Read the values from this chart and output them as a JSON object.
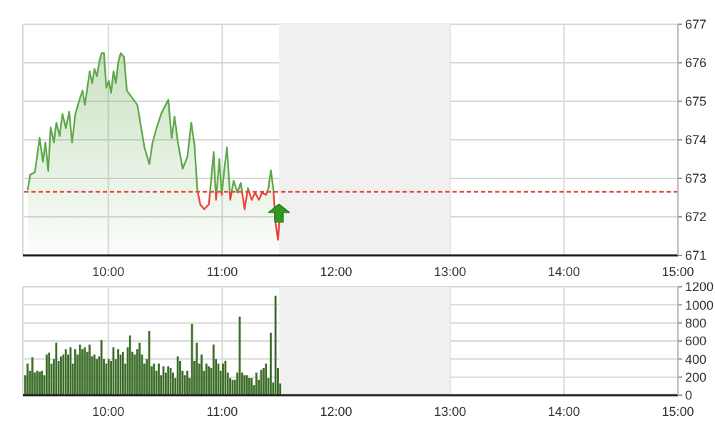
{
  "chart_data": [
    {
      "type": "area",
      "x": [
        9.293,
        9.314,
        9.356,
        9.397,
        9.427,
        9.448,
        9.473,
        9.494,
        9.523,
        9.544,
        9.573,
        9.598,
        9.628,
        9.657,
        9.682,
        9.711,
        9.741,
        9.774,
        9.795,
        9.816,
        9.837,
        9.858,
        9.879,
        9.9,
        9.921,
        9.941,
        9.962,
        9.983,
        10.004,
        10.025,
        10.046,
        10.067,
        10.088,
        10.109,
        10.138,
        10.163,
        10.192,
        10.222,
        10.255,
        10.289,
        10.318,
        10.36,
        10.389,
        10.423,
        10.464,
        10.494,
        10.527,
        10.556,
        10.582,
        10.611,
        10.653,
        10.695,
        10.728,
        10.757,
        10.782,
        10.808,
        10.841,
        10.883,
        10.925,
        10.946,
        10.975,
        10.996,
        11.017,
        11.042,
        11.071,
        11.1,
        11.134,
        11.163,
        11.197,
        11.226,
        11.259,
        11.289,
        11.322,
        11.351,
        11.385,
        11.406,
        11.427,
        11.448,
        11.469,
        11.49,
        11.502
      ],
      "series": [
        {
          "color": "#5fa84a",
          "values": [
            672.7,
            673.09,
            673.16,
            674.05,
            673.43,
            673.93,
            673.19,
            674.32,
            673.93,
            674.44,
            674.1,
            674.67,
            674.3,
            674.73,
            673.93,
            674.67,
            674.98,
            675.28,
            674.91,
            675.35,
            675.78,
            675.47,
            675.84,
            675.65,
            676.02,
            676.25,
            676.25,
            675.35,
            675.53,
            675.22,
            675.78,
            675.47,
            676.02,
            676.25,
            676.15,
            675.28,
            675.16,
            675.04,
            674.91,
            674.3,
            673.8,
            673.37,
            673.93,
            674.3,
            674.67,
            674.85,
            675.04,
            674.05,
            674.6,
            673.93,
            673.25,
            673.56,
            674.44,
            673.86,
            672.69,
            672.32,
            672.2,
            672.32,
            673.68,
            672.44,
            673.5,
            672.57,
            673.19,
            673.8,
            672.44,
            672.94,
            672.63,
            672.88,
            672.2,
            672.75,
            672.44,
            672.63,
            672.44,
            672.63,
            672.57,
            672.75,
            673.21,
            672.75,
            671.83,
            671.4,
            671.89
          ]
        }
      ],
      "xlim": [
        9.25,
        15
      ],
      "xticks": [
        {
          "value": 10,
          "label": "10:00"
        },
        {
          "value": 11,
          "label": "11:00"
        },
        {
          "value": 12,
          "label": "12:00"
        },
        {
          "value": 13,
          "label": "13:00"
        },
        {
          "value": 14,
          "label": "14:00"
        },
        {
          "value": 15,
          "label": "15:00"
        }
      ],
      "ylim": [
        671,
        677
      ],
      "yticks": [
        671,
        672,
        673,
        674,
        675,
        676,
        677
      ],
      "grid": true,
      "marker": "none",
      "ref_lines": [
        {
          "axis": "y",
          "value": 672.65,
          "color": "#e8423a",
          "line_style": "dashed"
        }
      ],
      "bands": [
        {
          "axis": "x",
          "from": 11.5,
          "to": 13,
          "color": "#f0f0f0"
        }
      ]
    },
    {
      "type": "bar",
      "x": [
        9.272,
        9.293,
        9.314,
        9.335,
        9.356,
        9.377,
        9.398,
        9.418,
        9.439,
        9.46,
        9.481,
        9.502,
        9.523,
        9.544,
        9.565,
        9.586,
        9.607,
        9.628,
        9.649,
        9.67,
        9.69,
        9.711,
        9.732,
        9.753,
        9.774,
        9.795,
        9.816,
        9.837,
        9.858,
        9.879,
        9.9,
        9.921,
        9.941,
        9.962,
        9.983,
        10.004,
        10.025,
        10.046,
        10.067,
        10.088,
        10.109,
        10.13,
        10.151,
        10.172,
        10.192,
        10.213,
        10.234,
        10.255,
        10.276,
        10.297,
        10.318,
        10.339,
        10.36,
        10.381,
        10.402,
        10.423,
        10.444,
        10.464,
        10.485,
        10.506,
        10.527,
        10.548,
        10.569,
        10.59,
        10.611,
        10.632,
        10.653,
        10.674,
        10.695,
        10.715,
        10.736,
        10.757,
        10.778,
        10.799,
        10.82,
        10.841,
        10.862,
        10.883,
        10.904,
        10.925,
        10.946,
        10.967,
        10.987,
        11.008,
        11.029,
        11.05,
        11.071,
        11.092,
        11.113,
        11.134,
        11.155,
        11.176,
        11.197,
        11.218,
        11.238,
        11.259,
        11.28,
        11.301,
        11.322,
        11.343,
        11.364,
        11.385,
        11.406,
        11.427,
        11.448,
        11.469,
        11.49,
        11.51
      ],
      "series": [
        {
          "color": "#3f6f2c",
          "values": [
            220,
            350,
            270,
            420,
            250,
            270,
            260,
            270,
            220,
            450,
            470,
            350,
            400,
            580,
            380,
            430,
            450,
            510,
            450,
            530,
            350,
            510,
            450,
            560,
            510,
            530,
            480,
            560,
            430,
            450,
            400,
            430,
            610,
            400,
            350,
            400,
            380,
            530,
            400,
            510,
            450,
            480,
            350,
            530,
            660,
            480,
            450,
            510,
            580,
            450,
            350,
            400,
            710,
            320,
            350,
            270,
            350,
            220,
            320,
            250,
            320,
            300,
            250,
            190,
            430,
            380,
            270,
            220,
            270,
            190,
            790,
            380,
            580,
            350,
            450,
            270,
            350,
            320,
            300,
            560,
            400,
            350,
            270,
            350,
            380,
            250,
            190,
            170,
            170,
            250,
            870,
            250,
            220,
            220,
            190,
            190,
            110,
            250,
            170,
            280,
            300,
            350,
            190,
            690,
            140,
            1100,
            300,
            130
          ]
        }
      ],
      "xlim": [
        9.25,
        15
      ],
      "xticks": [
        {
          "value": 10,
          "label": "10:00"
        },
        {
          "value": 11,
          "label": "11:00"
        },
        {
          "value": 12,
          "label": "12:00"
        },
        {
          "value": 13,
          "label": "13:00"
        },
        {
          "value": 14,
          "label": "14:00"
        },
        {
          "value": 15,
          "label": "15:00"
        }
      ],
      "ylim": [
        0,
        1200
      ],
      "yticks": [
        0,
        200,
        400,
        600,
        800,
        1000,
        1200
      ],
      "grid": true,
      "bands": [
        {
          "axis": "x",
          "from": 11.5,
          "to": 13,
          "color": "#f0f0f0"
        }
      ]
    }
  ]
}
